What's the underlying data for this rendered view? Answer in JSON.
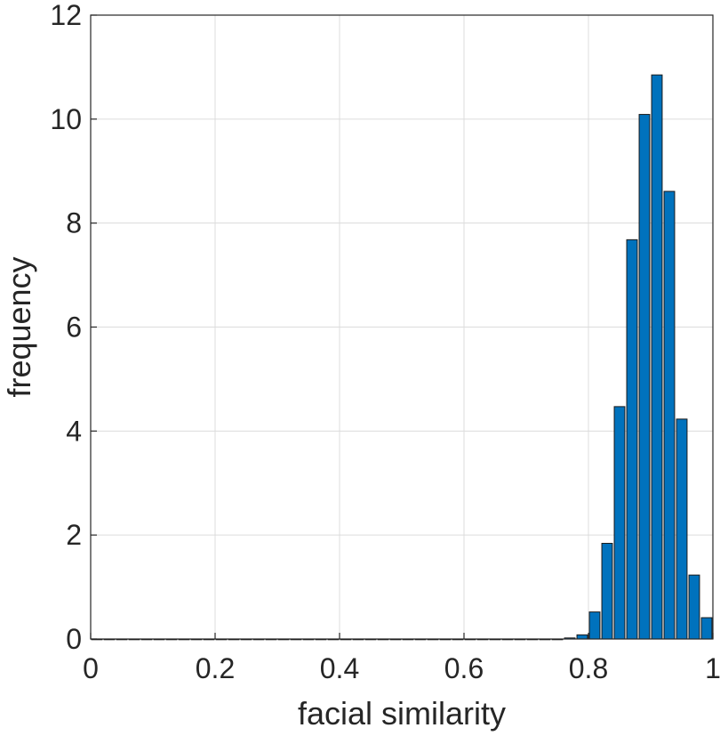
{
  "chart_data": {
    "type": "bar",
    "title": "",
    "xlabel": "facial similarity",
    "ylabel": "frequency",
    "xlim": [
      0,
      1
    ],
    "ylim": [
      0,
      12
    ],
    "xticks": [
      0,
      0.2,
      0.4,
      0.6,
      0.8,
      1
    ],
    "xtick_labels": [
      "0",
      "0.2",
      "0.4",
      "0.6",
      "0.8",
      "1"
    ],
    "yticks": [
      0,
      2,
      4,
      6,
      8,
      10,
      12
    ],
    "ytick_labels": [
      "0",
      "2",
      "4",
      "6",
      "8",
      "10",
      "12"
    ],
    "grid": true,
    "bar_color": "#0072BD",
    "bin_width": 0.02,
    "x": [
      0.01,
      0.03,
      0.05,
      0.07,
      0.09,
      0.11,
      0.13,
      0.15,
      0.17,
      0.19,
      0.21,
      0.23,
      0.25,
      0.27,
      0.29,
      0.31,
      0.33,
      0.35,
      0.37,
      0.39,
      0.41,
      0.43,
      0.45,
      0.47,
      0.49,
      0.51,
      0.53,
      0.55,
      0.57,
      0.59,
      0.61,
      0.63,
      0.65,
      0.67,
      0.69,
      0.71,
      0.73,
      0.75,
      0.77,
      0.79,
      0.81,
      0.83,
      0.85,
      0.87,
      0.89,
      0.91,
      0.93,
      0.95,
      0.97,
      0.99
    ],
    "values": [
      0,
      0,
      0,
      0,
      0,
      0,
      0,
      0,
      0,
      0,
      0,
      0,
      0,
      0,
      0,
      0,
      0,
      0,
      0,
      0,
      0,
      0,
      0,
      0,
      0,
      0,
      0,
      0,
      0,
      0,
      0,
      0,
      0,
      0,
      0,
      0,
      0,
      0,
      0.02,
      0.08,
      0.52,
      1.84,
      4.47,
      7.68,
      10.09,
      10.85,
      8.61,
      4.23,
      1.23,
      0.41
    ]
  }
}
